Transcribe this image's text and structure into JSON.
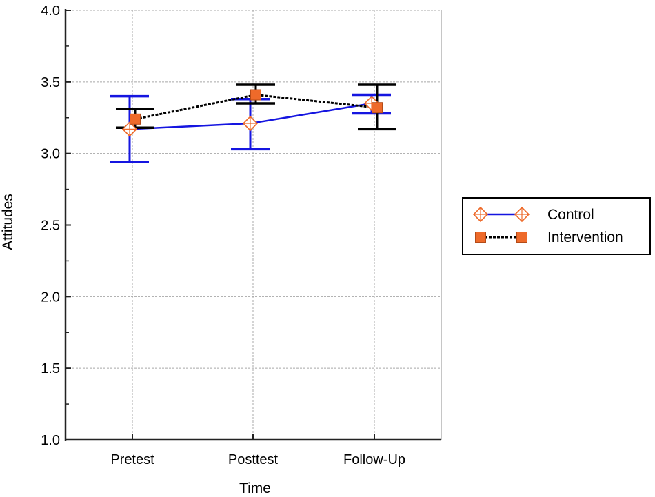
{
  "chart_data": {
    "type": "line",
    "xlabel": "Time",
    "ylabel": "Attitudes",
    "categories": [
      "Pretest",
      "Posttest",
      "Follow-Up"
    ],
    "ylim": [
      1.0,
      4.0
    ],
    "yticks": [
      "1.0",
      "1.5",
      "2.0",
      "2.5",
      "3.0",
      "3.5",
      "4.0"
    ],
    "grid": true,
    "legend_position": "right",
    "series": [
      {
        "name": "Control",
        "values": [
          3.17,
          3.21,
          3.35
        ],
        "error_low": [
          2.94,
          3.03,
          3.28
        ],
        "error_high": [
          3.4,
          3.38,
          3.41
        ],
        "line_color": "#1515e0",
        "line_style": "solid",
        "marker": "diamond-cross",
        "marker_color": "#ee6a2a"
      },
      {
        "name": "Intervention",
        "values": [
          3.24,
          3.41,
          3.32
        ],
        "error_low": [
          3.18,
          3.35,
          3.17
        ],
        "error_high": [
          3.31,
          3.48,
          3.48
        ],
        "line_color": "#000000",
        "line_style": "dotted",
        "marker": "square",
        "marker_color": "#ee6a2a"
      }
    ]
  }
}
